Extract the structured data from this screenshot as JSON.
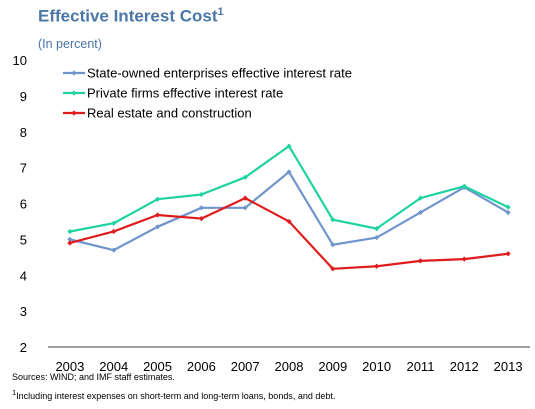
{
  "header": {
    "title": "Effective Interest Cost",
    "title_sup": "1",
    "subtitle": "(In percent)"
  },
  "footer": {
    "source": "Sources: WIND; and IMF staff estimates.",
    "note_sup": "1",
    "note": "Including interest expenses on short-term and long-term loans, bonds, and debt."
  },
  "chart_data": {
    "type": "line",
    "title": "Effective Interest Cost",
    "subtitle": "(In percent)",
    "x": [
      "2003",
      "2004",
      "2005",
      "2006",
      "2007",
      "2008",
      "2009",
      "2010",
      "2011",
      "2012",
      "2013"
    ],
    "ylim": [
      2,
      10
    ],
    "yticks": [
      2,
      3,
      4,
      5,
      6,
      7,
      8,
      9,
      10
    ],
    "grid": false,
    "legend_position": "top-left",
    "series": [
      {
        "name": "State-owned enterprises effective interest rate",
        "color": "#6f95cc",
        "marker": "diamond",
        "values": [
          5.0,
          4.7,
          5.35,
          5.88,
          5.88,
          6.88,
          4.85,
          5.05,
          5.75,
          6.45,
          5.75
        ]
      },
      {
        "name": "Private firms effective interest rate",
        "color": "#1fd3a0",
        "marker": "diamond",
        "values": [
          5.22,
          5.45,
          6.12,
          6.25,
          6.73,
          7.6,
          5.55,
          5.3,
          6.15,
          6.48,
          5.9
        ]
      },
      {
        "name": "Real estate and construction",
        "color": "#e01b1b",
        "marker": "diamond",
        "values": [
          4.9,
          5.22,
          5.68,
          5.58,
          6.15,
          5.5,
          4.18,
          4.25,
          4.4,
          4.45,
          4.6
        ]
      }
    ]
  }
}
